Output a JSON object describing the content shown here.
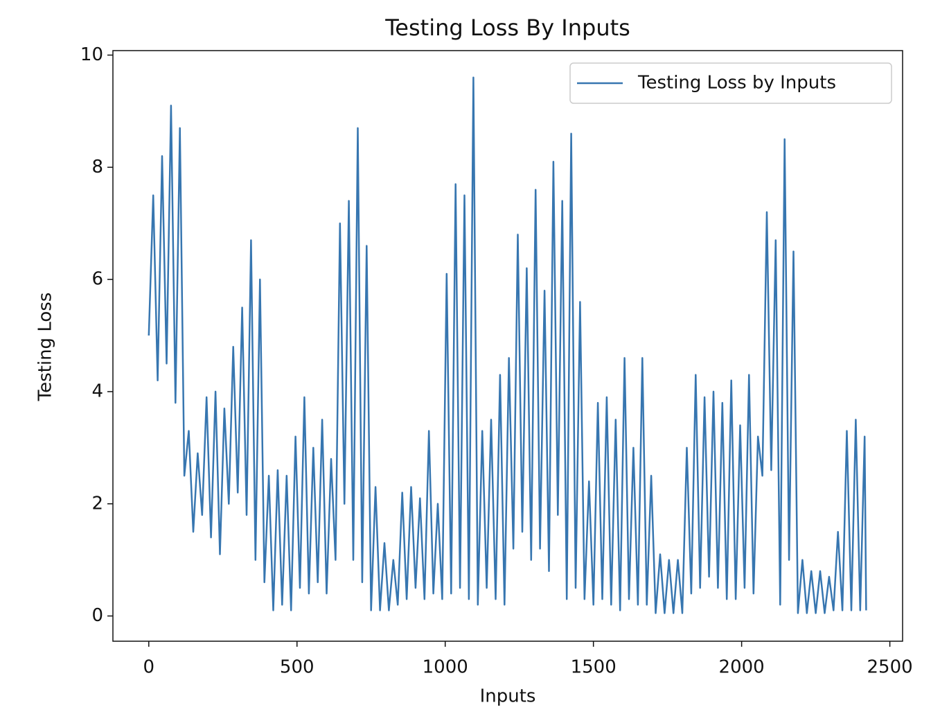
{
  "chart_data": {
    "type": "line",
    "title": "Testing Loss By Inputs",
    "x_label": "Inputs",
    "y_label": "Testing Loss",
    "x": [
      0,
      15,
      30,
      45,
      60,
      75,
      90,
      105,
      120,
      135,
      150,
      165,
      180,
      195,
      210,
      225,
      240,
      255,
      270,
      285,
      300,
      315,
      330,
      345,
      360,
      375,
      390,
      405,
      420,
      435,
      450,
      465,
      480,
      495,
      510,
      525,
      540,
      555,
      570,
      585,
      600,
      615,
      630,
      645,
      660,
      675,
      690,
      705,
      720,
      735,
      750,
      765,
      780,
      795,
      810,
      825,
      840,
      855,
      870,
      885,
      900,
      915,
      930,
      945,
      960,
      975,
      990,
      1005,
      1020,
      1035,
      1050,
      1065,
      1080,
      1095,
      1110,
      1125,
      1140,
      1155,
      1170,
      1185,
      1200,
      1215,
      1230,
      1245,
      1260,
      1275,
      1290,
      1305,
      1320,
      1335,
      1350,
      1365,
      1380,
      1395,
      1410,
      1425,
      1440,
      1455,
      1470,
      1485,
      1500,
      1515,
      1530,
      1545,
      1560,
      1575,
      1590,
      1605,
      1620,
      1635,
      1650,
      1665,
      1680,
      1695,
      1710,
      1725,
      1740,
      1755,
      1770,
      1785,
      1800,
      1815,
      1830,
      1845,
      1860,
      1875,
      1890,
      1905,
      1920,
      1935,
      1950,
      1965,
      1980,
      1995,
      2010,
      2025,
      2040,
      2055,
      2070,
      2085,
      2100,
      2115,
      2130,
      2145,
      2160,
      2175,
      2190,
      2205,
      2220,
      2235,
      2250,
      2265,
      2280,
      2295,
      2310,
      2325,
      2340,
      2355,
      2370,
      2385,
      2400,
      2415,
      2420
    ],
    "series": [
      {
        "name": "Testing Loss by Inputs",
        "color": "#3776b0",
        "values": [
          5.0,
          7.5,
          4.2,
          8.2,
          4.5,
          9.1,
          3.8,
          8.7,
          2.5,
          3.3,
          1.5,
          2.9,
          1.8,
          3.9,
          1.4,
          4.0,
          1.1,
          3.7,
          2.0,
          4.8,
          2.2,
          5.5,
          1.8,
          6.7,
          1.0,
          6.0,
          0.6,
          2.5,
          0.1,
          2.6,
          0.2,
          2.5,
          0.1,
          3.2,
          0.5,
          3.9,
          0.4,
          3.0,
          0.6,
          3.5,
          0.4,
          2.8,
          1.0,
          7.0,
          2.0,
          7.4,
          1.0,
          8.7,
          0.6,
          6.6,
          0.1,
          2.3,
          0.1,
          1.3,
          0.1,
          1.0,
          0.2,
          2.2,
          0.3,
          2.3,
          0.5,
          2.1,
          0.3,
          3.3,
          0.4,
          2.0,
          0.3,
          6.1,
          0.4,
          7.7,
          0.5,
          7.5,
          0.3,
          9.6,
          0.2,
          3.3,
          0.5,
          3.5,
          0.3,
          4.3,
          0.2,
          4.6,
          1.2,
          6.8,
          1.5,
          6.2,
          1.0,
          7.6,
          1.2,
          5.8,
          0.8,
          8.1,
          1.8,
          7.4,
          0.3,
          8.6,
          0.5,
          5.6,
          0.3,
          2.4,
          0.2,
          3.8,
          0.3,
          3.9,
          0.2,
          3.5,
          0.1,
          4.6,
          0.3,
          3.0,
          0.2,
          4.6,
          0.2,
          2.5,
          0.05,
          1.1,
          0.05,
          1.0,
          0.05,
          1.0,
          0.05,
          3.0,
          0.4,
          4.3,
          0.5,
          3.9,
          0.7,
          4.0,
          0.5,
          3.8,
          0.3,
          4.2,
          0.3,
          3.4,
          0.5,
          4.3,
          0.4,
          3.2,
          2.5,
          7.2,
          2.6,
          6.7,
          0.2,
          8.5,
          1.0,
          6.5,
          0.05,
          1.0,
          0.05,
          0.8,
          0.05,
          0.8,
          0.05,
          0.7,
          0.1,
          1.5,
          0.1,
          3.3,
          0.1,
          3.5,
          0.1,
          3.2,
          0.1
        ]
      }
    ],
    "xlim": [
      -121,
      2543
    ],
    "ylim": [
      -0.45,
      10.08
    ],
    "xticks": [
      0,
      500,
      1000,
      1500,
      2000,
      2500
    ],
    "yticks": [
      0,
      2,
      4,
      6,
      8,
      10
    ],
    "legend": "upper right"
  }
}
